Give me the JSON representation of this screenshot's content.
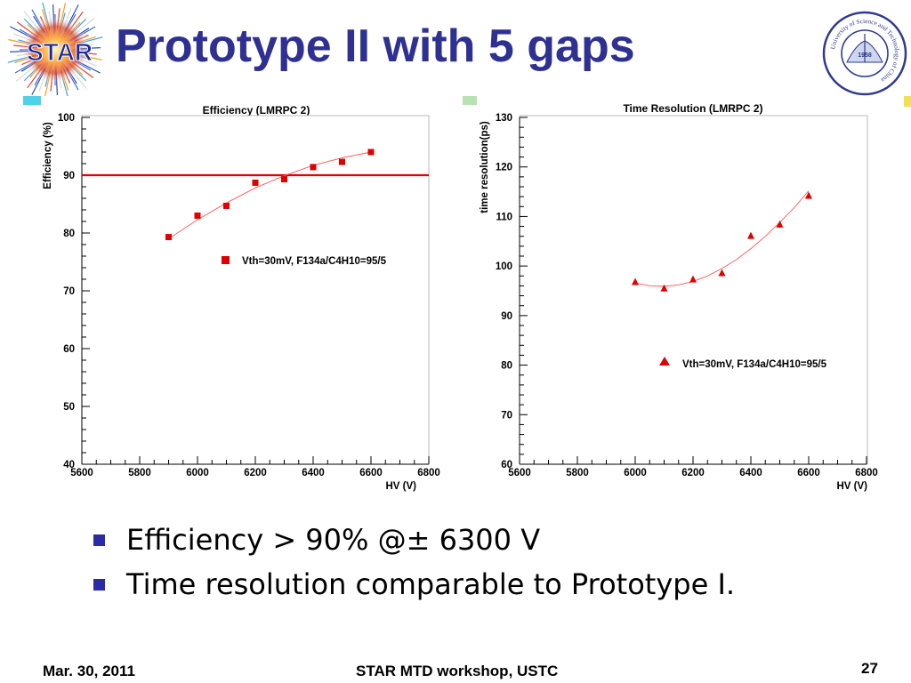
{
  "slide": {
    "title": "Prototype II with 5 gaps",
    "logo_text": "STAR",
    "seal_text": "University of Science and Technology of China",
    "seal_year": "1958",
    "accent_color": "#2e3192",
    "bullets": [
      "Efficiency > 90% @± 6300 V",
      "Time resolution comparable to Prototype I."
    ],
    "footer": {
      "date": "Mar. 30, 2011",
      "event": "STAR MTD workshop, USTC",
      "page": "27"
    }
  },
  "chart_data": [
    {
      "type": "scatter",
      "title": "Efficiency (LMRPC 2)",
      "xlabel": "HV (V)",
      "ylabel": "Efficiency (%)",
      "xlim": [
        5600,
        6800
      ],
      "ylim": [
        40,
        100
      ],
      "xticks": [
        5600,
        5800,
        6000,
        6200,
        6400,
        6600,
        6800
      ],
      "yticks": [
        40,
        50,
        60,
        70,
        80,
        90,
        100
      ],
      "marker": "square",
      "color": "#e00000",
      "reference_line": {
        "y": 90,
        "color": "#e00000"
      },
      "series": [
        {
          "name": "Vth=30mV, F134a/C4H10=95/5",
          "x": [
            5900,
            6000,
            6100,
            6200,
            6300,
            6400,
            6500,
            6600
          ],
          "y": [
            79.3,
            83.0,
            84.7,
            88.7,
            89.3,
            91.4,
            92.3,
            94.0
          ]
        }
      ],
      "fit": {
        "x": [
          5900,
          6000,
          6100,
          6200,
          6300,
          6400,
          6500,
          6600
        ],
        "y": [
          79.0,
          82.3,
          85.2,
          87.8,
          89.9,
          91.7,
          93.0,
          94.0
        ]
      },
      "legend_position": "middle"
    },
    {
      "type": "scatter",
      "title": "Time Resolution (LMRPC 2)",
      "xlabel": "HV (V)",
      "ylabel": "time resolution(ps)",
      "xlim": [
        5600,
        6800
      ],
      "ylim": [
        60,
        130
      ],
      "xticks": [
        5600,
        5800,
        6000,
        6200,
        6400,
        6600,
        6800
      ],
      "yticks": [
        60,
        70,
        80,
        90,
        100,
        110,
        120,
        130
      ],
      "marker": "triangle",
      "color": "#e00000",
      "series": [
        {
          "name": "Vth=30mV, F134a/C4H10=95/5",
          "x": [
            6000,
            6100,
            6200,
            6300,
            6400,
            6500,
            6600
          ],
          "y": [
            96.8,
            95.5,
            97.3,
            98.6,
            106.1,
            108.4,
            114.2
          ]
        }
      ],
      "fit": {
        "x": [
          6000,
          6050,
          6100,
          6150,
          6200,
          6250,
          6300,
          6350,
          6400,
          6450,
          6500,
          6550,
          6600
        ],
        "y": [
          96.6,
          96.0,
          95.9,
          96.2,
          96.9,
          98.0,
          99.5,
          101.3,
          103.5,
          106.0,
          108.8,
          111.8,
          115.2
        ]
      },
      "legend_position": "bottom-right"
    }
  ]
}
